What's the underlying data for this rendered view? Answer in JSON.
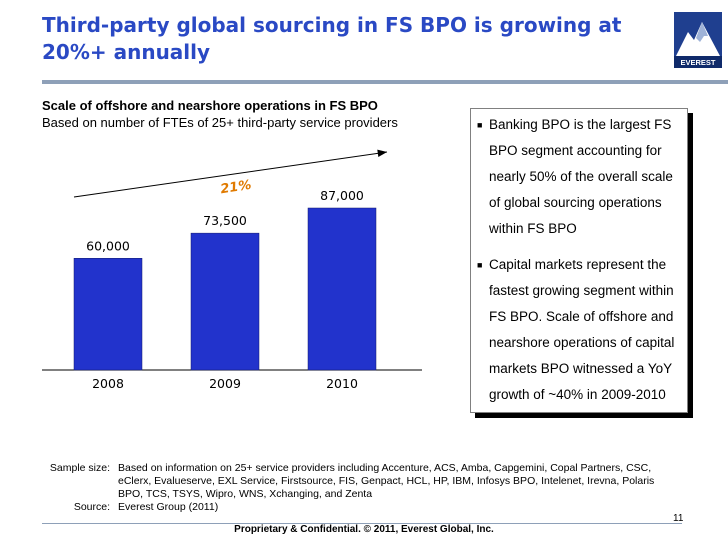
{
  "slide": {
    "title": "Third-party global sourcing in FS BPO is growing at 20%+ annually",
    "logo_text": "EVEREST",
    "chart_heading": "Scale of offshore and nearshore operations in FS BPO",
    "chart_subheading": "Based on number of FTEs of 25+ third-party service providers",
    "bullets": [
      "Banking BPO is the largest FS BPO segment accounting for nearly 50% of the overall scale of global sourcing operations within FS BPO",
      "Capital markets represent the fastest growing segment within FS BPO. Scale of offshore and nearshore operations of capital markets BPO witnessed a YoY growth of ~40% in 2009-2010"
    ],
    "footnote_sample_label": "Sample size:",
    "footnote_sample_text": "Based on information on 25+ service providers including Accenture, ACS, Amba, Capgemini, Copal Partners, CSC, eClerx, Evalueserve, EXL Service, Firstsource, FIS, Genpact, HCL, HP, IBM, Infosys BPO, Intelenet, Irevna, Polaris BPO, TCS, TSYS, Wipro, WNS, Xchanging, and Zenta",
    "footnote_source_label": "Source:",
    "footnote_source_text": "Everest Group (2011)",
    "page_number": "11",
    "confidential": "Proprietary & Confidential. © 2011, Everest Global, Inc."
  },
  "colors": {
    "title": "#2a49c4",
    "bar": "#2233cc",
    "cagr": "#e07a00"
  },
  "chart_data": {
    "type": "bar",
    "title": "Scale of offshore and nearshore operations in FS BPO",
    "subtitle": "Based on number of FTEs of 25+ third-party service providers",
    "categories": [
      "2008",
      "2009",
      "2010"
    ],
    "values": [
      60000,
      73500,
      87000
    ],
    "value_labels": [
      "60,000",
      "73,500",
      "87,000"
    ],
    "annotation": "21%",
    "xlabel": "",
    "ylabel": "",
    "ylim": [
      0,
      87000
    ]
  }
}
